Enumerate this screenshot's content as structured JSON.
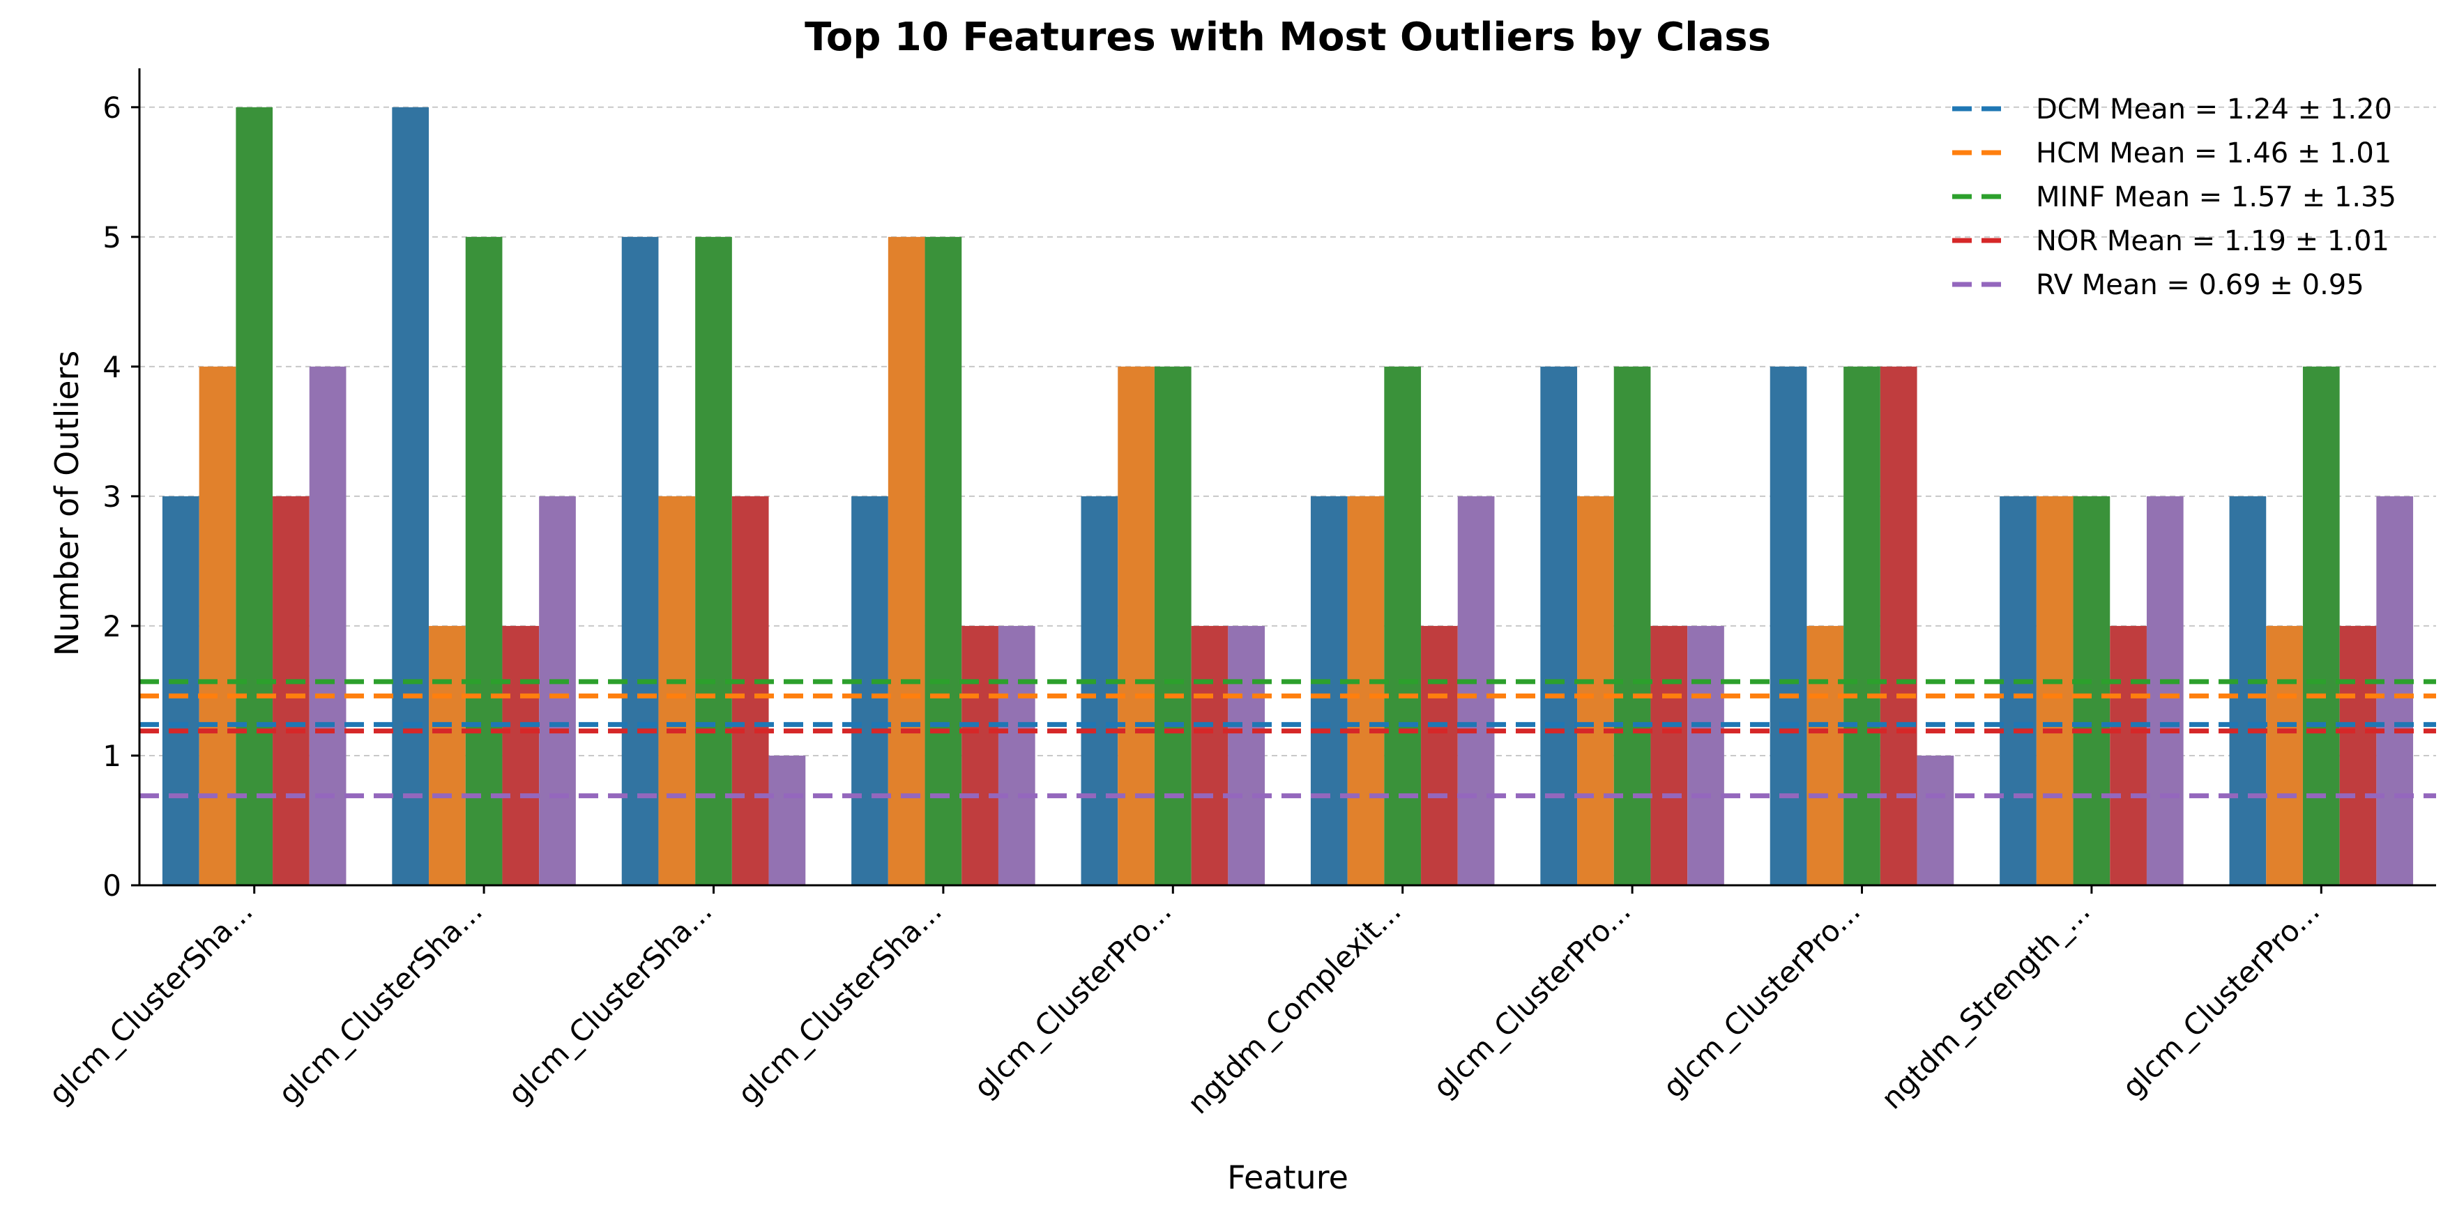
{
  "chart_data": {
    "type": "bar",
    "title": "Top 10 Features with Most Outliers by Class",
    "xlabel": "Feature",
    "ylabel": "Number of Outliers",
    "ylim": [
      0,
      6.3
    ],
    "yticks": [
      0,
      1,
      2,
      3,
      4,
      5,
      6
    ],
    "grid": true,
    "legend_position": "top-right",
    "categories": [
      "glcm_ClusterSha...",
      "glcm_ClusterSha...",
      "glcm_ClusterSha...",
      "glcm_ClusterSha...",
      "glcm_ClusterPro...",
      "ngtdm_Complexit...",
      "glcm_ClusterPro...",
      "glcm_ClusterPro...",
      "ngtdm_Strength_...",
      "glcm_ClusterPro..."
    ],
    "series": [
      {
        "name": "DCM",
        "color": "#3274a1",
        "values": [
          3,
          6,
          5,
          3,
          3,
          3,
          4,
          4,
          3,
          3
        ]
      },
      {
        "name": "HCM",
        "color": "#e1812c",
        "values": [
          4,
          2,
          3,
          5,
          4,
          3,
          3,
          2,
          3,
          2
        ]
      },
      {
        "name": "MINF",
        "color": "#3a923a",
        "values": [
          6,
          5,
          5,
          5,
          4,
          4,
          4,
          4,
          3,
          4
        ]
      },
      {
        "name": "NOR",
        "color": "#c03d3e",
        "values": [
          3,
          2,
          3,
          2,
          2,
          2,
          2,
          4,
          2,
          2
        ]
      },
      {
        "name": "RV",
        "color": "#9372b2",
        "values": [
          4,
          3,
          1,
          2,
          2,
          3,
          2,
          1,
          3,
          3
        ]
      }
    ],
    "mean_lines": [
      {
        "label": "DCM Mean = 1.24 ± 1.20",
        "value": 1.24,
        "color": "#1f77b4"
      },
      {
        "label": "HCM Mean = 1.46 ± 1.01",
        "value": 1.46,
        "color": "#ff7f0e"
      },
      {
        "label": "MINF Mean = 1.57 ± 1.35",
        "value": 1.57,
        "color": "#2ca02c"
      },
      {
        "label": "NOR Mean = 1.19 ± 1.01",
        "value": 1.19,
        "color": "#d62728"
      },
      {
        "label": "RV Mean = 0.69 ± 0.95",
        "value": 0.69,
        "color": "#9467bd"
      }
    ]
  }
}
